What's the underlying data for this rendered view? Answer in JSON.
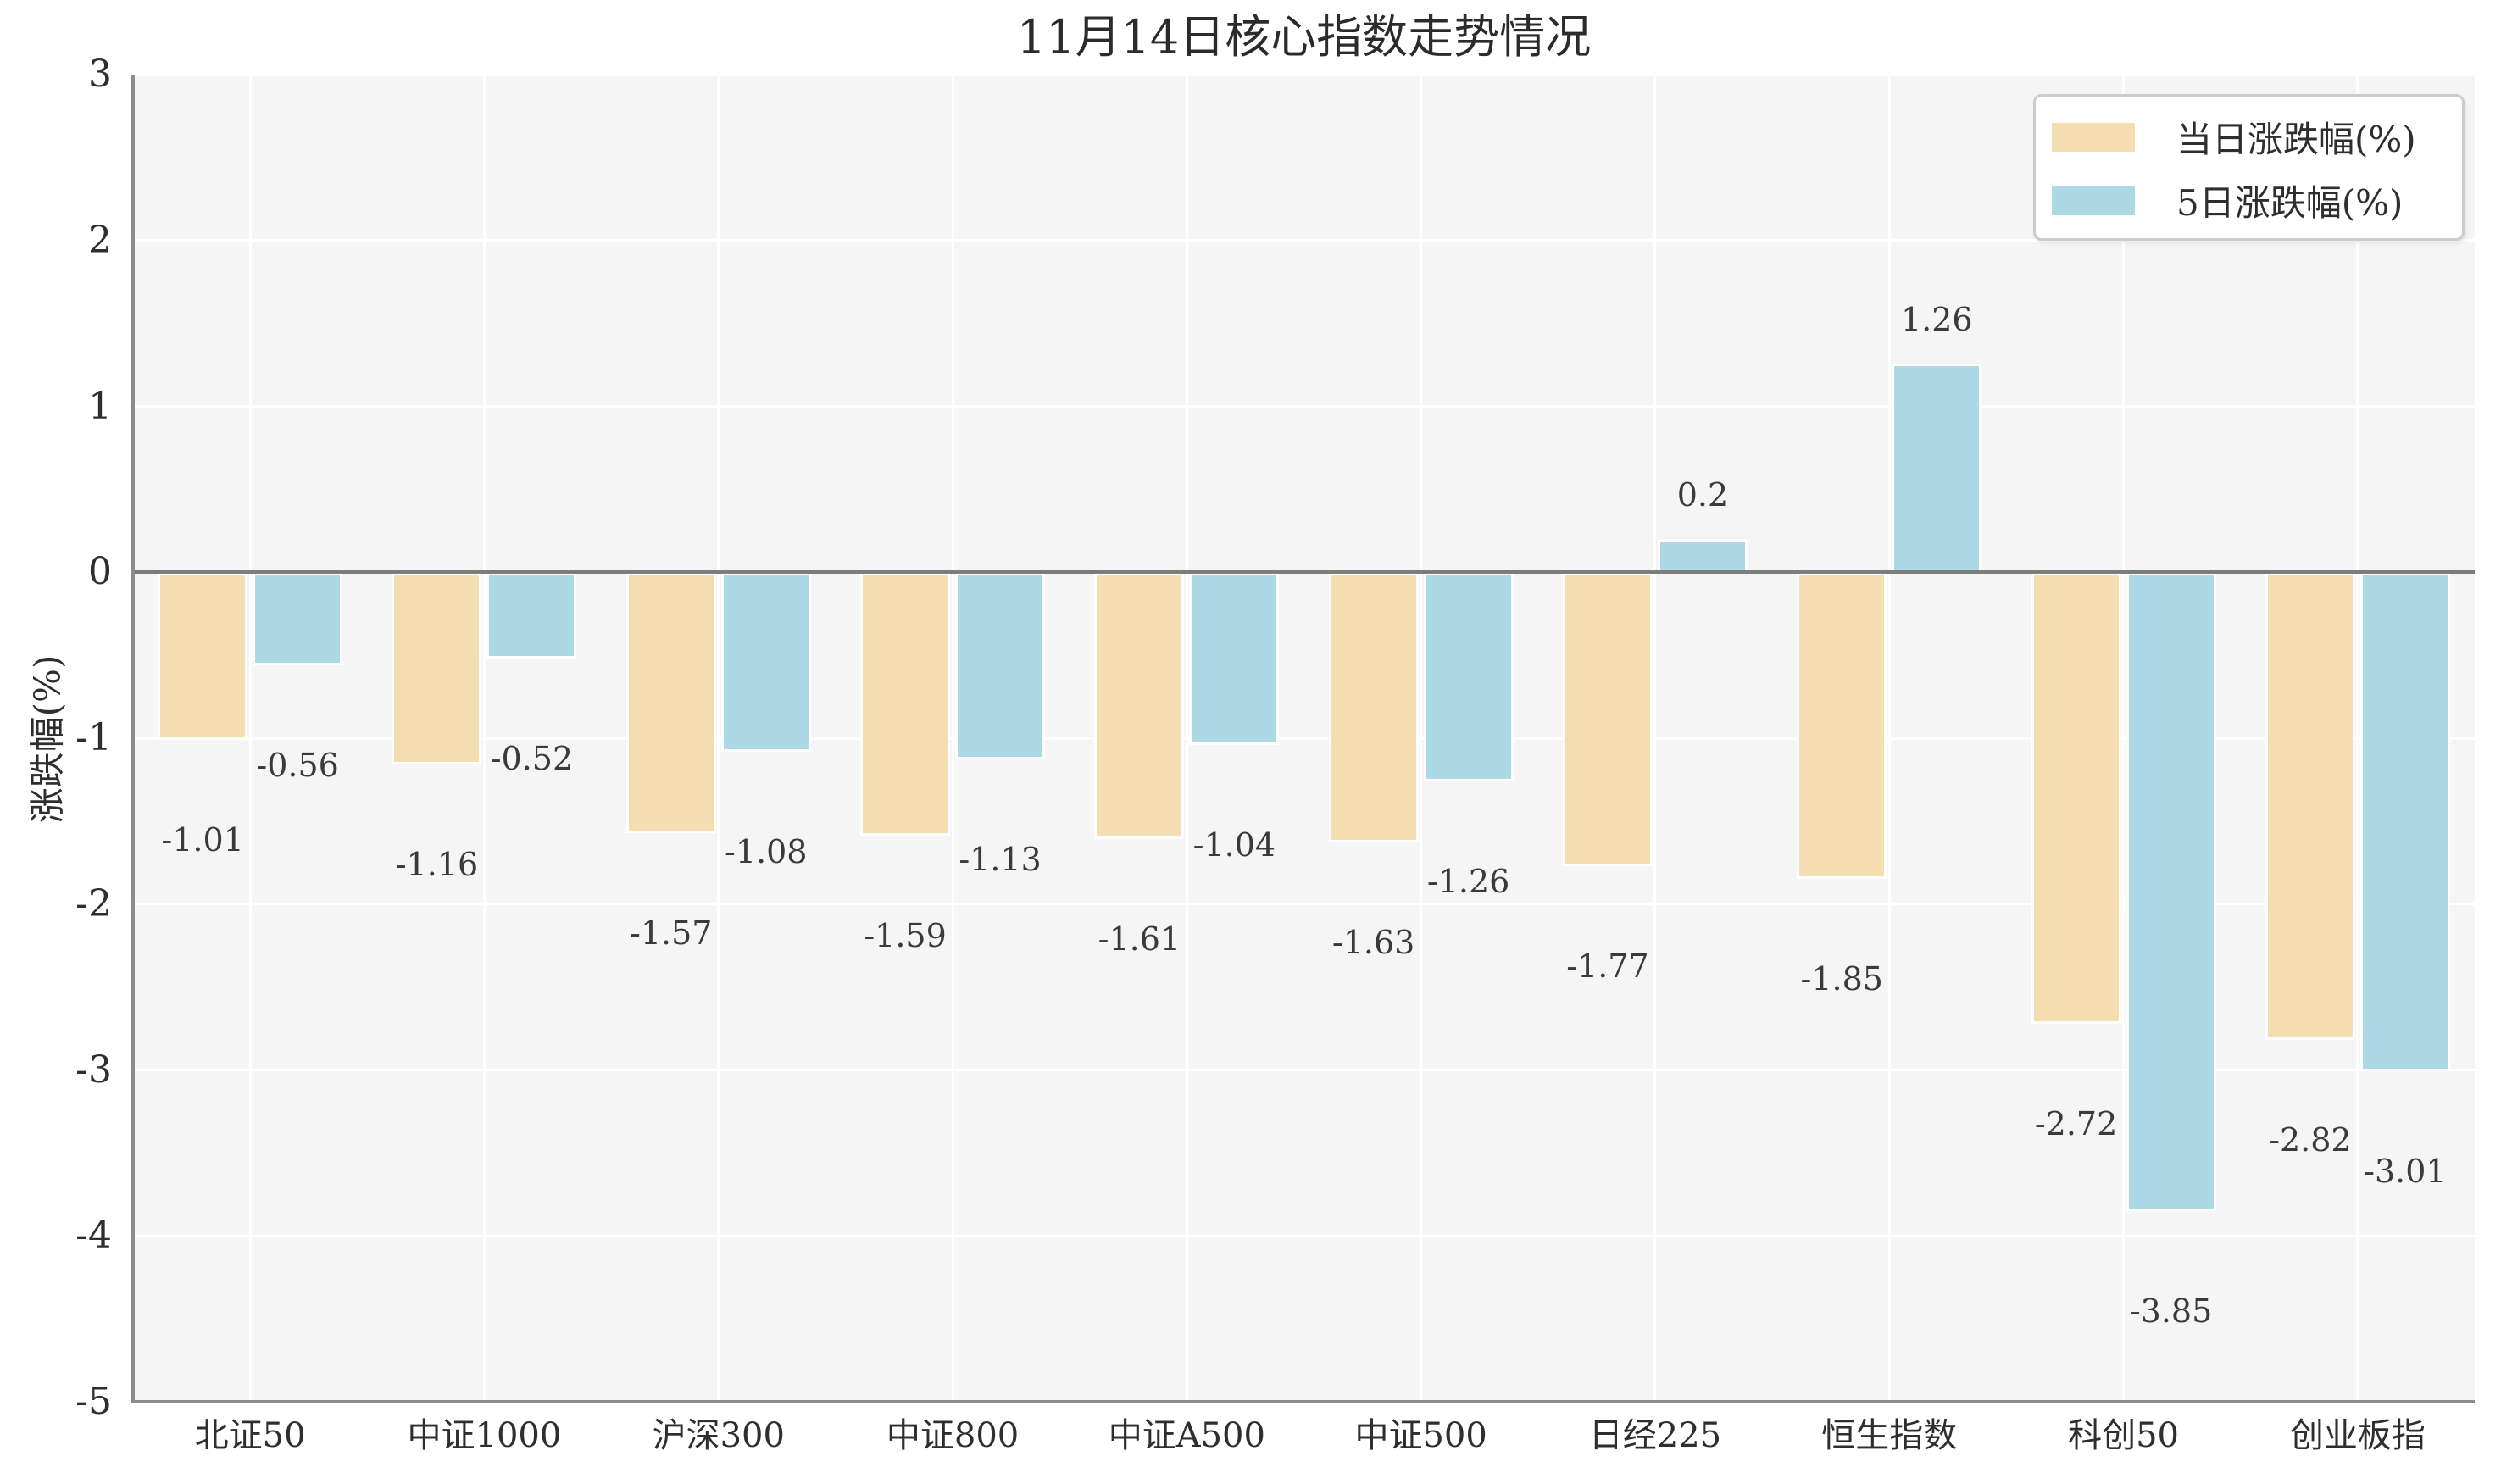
{
  "title": "11月14日核心指数走势情况",
  "chart_data": {
    "type": "bar",
    "title": "11月14日核心指数走势情况",
    "categories": [
      "北证50",
      "中证1000",
      "沪深300",
      "中证800",
      "中证A500",
      "中证500",
      "日经225",
      "恒生指数",
      "科创50",
      "创业板指"
    ],
    "series": [
      {
        "name": "当日涨跌幅(%)",
        "color": "#F4DEB1",
        "values": [
          -1.01,
          -1.16,
          -1.57,
          -1.59,
          -1.61,
          -1.63,
          -1.77,
          -1.85,
          -2.72,
          -2.82
        ],
        "labels": [
          "-1.01",
          "-1.16",
          "-1.57",
          "-1.59",
          "-1.61",
          "-1.63",
          "-1.77",
          "-1.85",
          "-2.72",
          "-2.82"
        ]
      },
      {
        "name": "5日涨跌幅(%)",
        "color": "#ADD8E6",
        "values": [
          -0.56,
          -0.52,
          -1.08,
          -1.13,
          -1.04,
          -1.26,
          0.2,
          1.26,
          -3.85,
          -3.01
        ],
        "labels": [
          "-0.56",
          "-0.52",
          "-1.08",
          "-1.13",
          "-1.04",
          "-1.26",
          "0.2",
          "1.26",
          "-3.85",
          "-3.01"
        ]
      }
    ],
    "ylabel": "涨跌幅(%)",
    "ylim": [
      -5,
      3
    ],
    "yticks": [
      "3",
      "2",
      "1",
      "0",
      "-1",
      "-2",
      "-3",
      "-4",
      "-5"
    ],
    "grid": true,
    "legend_position": "upper right"
  },
  "colors": {
    "plot_bg": "#F5F5F6",
    "grid": "#FFFFFF",
    "zero_line": "#7D7D7D",
    "spine": "#8C8C8C",
    "text": "#2E2E2E",
    "bar_label_text": "#3A3A3A",
    "bar_edge": "#FFFFFF",
    "legend_bg": "#FFFFFF",
    "legend_border": "#CCCCCC"
  }
}
